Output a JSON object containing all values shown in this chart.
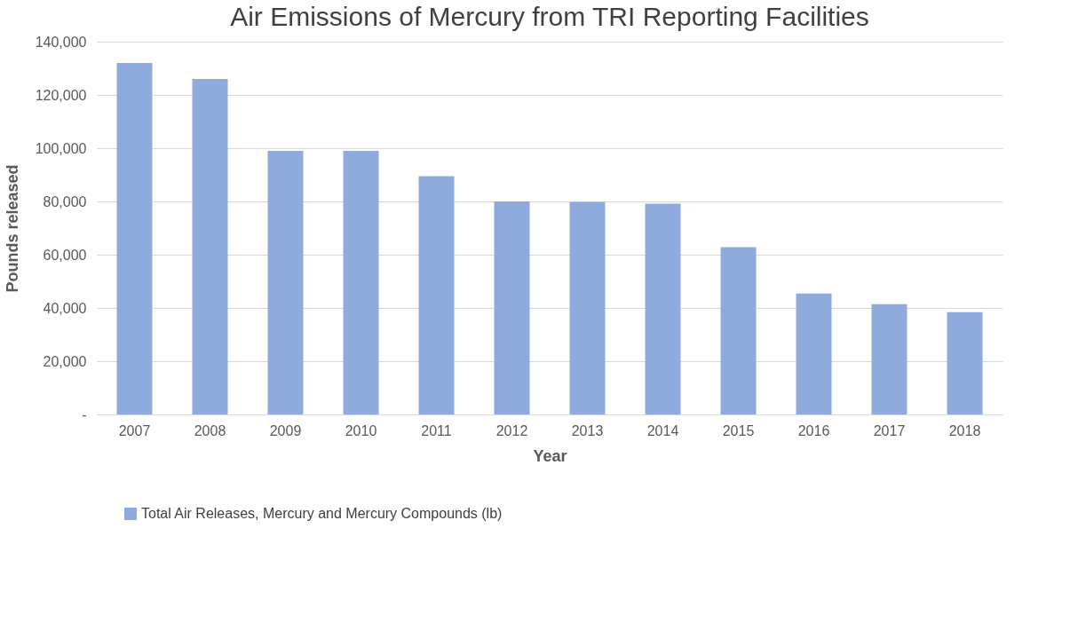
{
  "chart_data": {
    "type": "bar",
    "title": "Air Emissions of Mercury from TRI Reporting Facilities",
    "xlabel": "Year",
    "ylabel": "Pounds released",
    "categories": [
      "2007",
      "2008",
      "2009",
      "2010",
      "2011",
      "2012",
      "2013",
      "2014",
      "2015",
      "2016",
      "2017",
      "2018"
    ],
    "series": [
      {
        "name": "Total Air Releases, Mercury and Mercury Compounds (lb)",
        "color": "#8faadc",
        "values": [
          132000,
          126000,
          99000,
          99000,
          89500,
          80000,
          79800,
          79200,
          62800,
          45400,
          41400,
          38400
        ]
      }
    ],
    "ylim": [
      0,
      140000
    ],
    "yticks": [
      {
        "value": 0,
        "label": "-"
      },
      {
        "value": 20000,
        "label": "20,000"
      },
      {
        "value": 40000,
        "label": "40,000"
      },
      {
        "value": 60000,
        "label": "60,000"
      },
      {
        "value": 80000,
        "label": "80,000"
      },
      {
        "value": 100000,
        "label": "100,000"
      },
      {
        "value": 120000,
        "label": "120,000"
      },
      {
        "value": 140000,
        "label": "140,000"
      }
    ],
    "grid": "y",
    "legend": "bottom"
  }
}
